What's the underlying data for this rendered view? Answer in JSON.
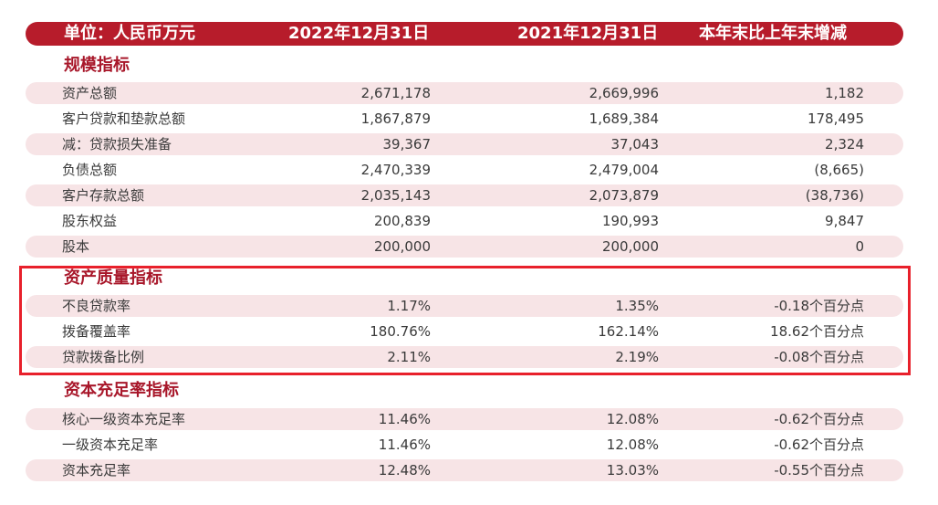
{
  "header": {
    "unit": "单位：人民币万元",
    "col1": "2022年12月31日",
    "col2": "2021年12月31日",
    "col3": "本年末比上年末增减"
  },
  "sections": [
    {
      "title": "规模指标",
      "rows": [
        {
          "label": "资产总额",
          "v1": "2,671,178",
          "v2": "2,669,996",
          "v3": "1,182"
        },
        {
          "label": "客户贷款和垫款总额",
          "v1": "1,867,879",
          "v2": "1,689,384",
          "v3": "178,495"
        },
        {
          "label": "减：贷款损失准备",
          "v1": "39,367",
          "v2": "37,043",
          "v3": "2,324"
        },
        {
          "label": "负债总额",
          "v1": "2,470,339",
          "v2": "2,479,004",
          "v3": "(8,665)"
        },
        {
          "label": "客户存款总额",
          "v1": "2,035,143",
          "v2": "2,073,879",
          "v3": "(38,736)"
        },
        {
          "label": "股东权益",
          "v1": "200,839",
          "v2": "190,993",
          "v3": "9,847"
        },
        {
          "label": "股本",
          "v1": "200,000",
          "v2": "200,000",
          "v3": "0"
        }
      ]
    },
    {
      "title": "资产质量指标",
      "rows": [
        {
          "label": "不良贷款率",
          "v1": "1.17%",
          "v2": "1.35%",
          "v3": "-0.18个百分点"
        },
        {
          "label": "拨备覆盖率",
          "v1": "180.76%",
          "v2": "162.14%",
          "v3": "18.62个百分点"
        },
        {
          "label": "贷款拨备比例",
          "v1": "2.11%",
          "v2": "2.19%",
          "v3": "-0.08个百分点"
        }
      ]
    },
    {
      "title": "资本充足率指标",
      "rows": [
        {
          "label": "核心一级资本充足率",
          "v1": "11.46%",
          "v2": "12.08%",
          "v3": "-0.62个百分点"
        },
        {
          "label": "一级资本充足率",
          "v1": "11.46%",
          "v2": "12.08%",
          "v3": "-0.62个百分点"
        },
        {
          "label": "资本充足率",
          "v1": "12.48%",
          "v2": "13.03%",
          "v3": "-0.55个百分点"
        }
      ]
    }
  ],
  "colors": {
    "header_bg": "#b71c2b",
    "section_title": "#a8172a",
    "row_shade": "#f7e4e6",
    "highlight_border": "#e8202b"
  }
}
